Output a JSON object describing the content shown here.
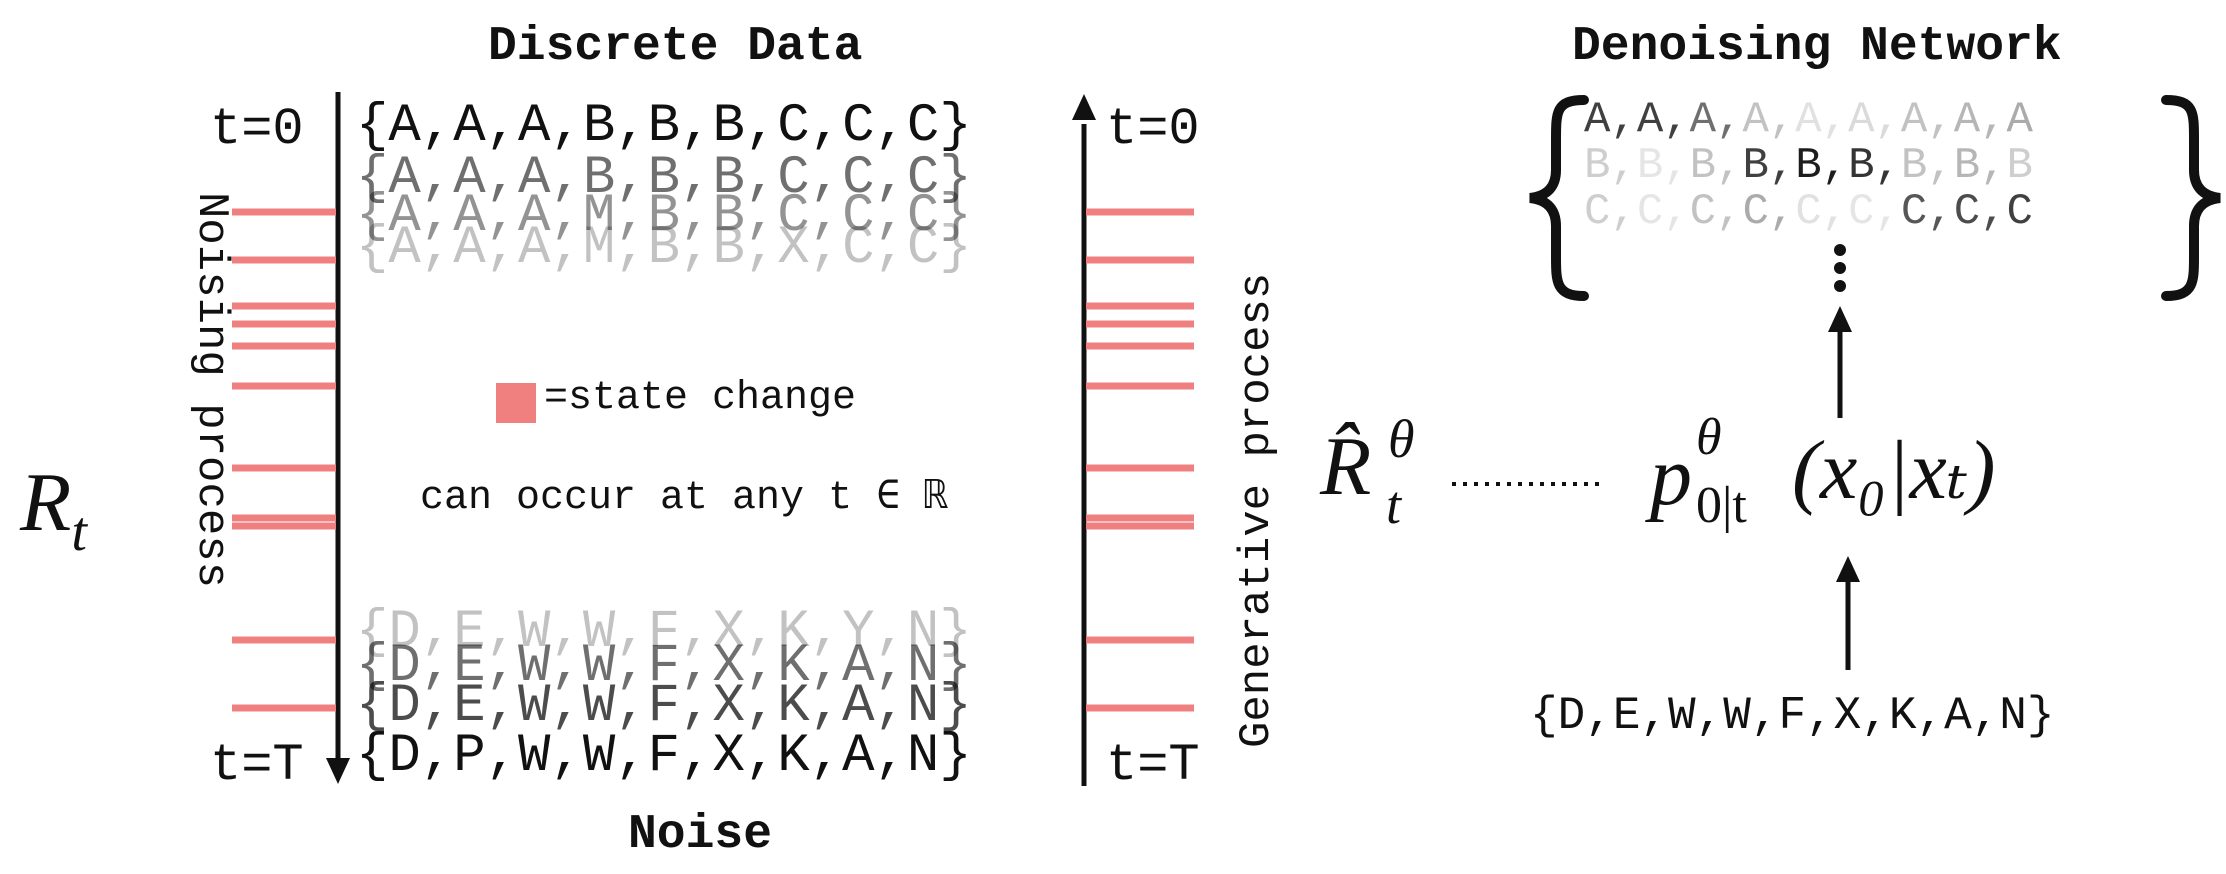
{
  "left": {
    "title": "Discrete Data",
    "bottom_title": "Noise",
    "t0_left": "t=0",
    "t0_right": "t=0",
    "tT_left": "t=T",
    "tT_right": "t=T",
    "noising_label": "Noising process",
    "generative_label": "Generative process",
    "rate_symbol": "R",
    "rate_subscript": "t",
    "legend_text": "=state change",
    "continuous_text": "can occur at any t ∈ ℝ",
    "top_sequences": [
      {
        "text": "{A,A,A,B,B,B,C,C,C}",
        "opacity": 1.0
      },
      {
        "text": "{A,A,A,B,B,B,C,C,C}",
        "opacity": 0.6
      },
      {
        "text": "{A,A,A,M,B,B,C,C,C}",
        "opacity": 0.45
      },
      {
        "text": "{A,A,A,M,B,B,X,C,C}",
        "opacity": 0.25
      }
    ],
    "bottom_sequences": [
      {
        "text": "{D,E,W,W,F,X,K,Y,N}",
        "opacity": 0.25
      },
      {
        "text": "{D,E,W,W,F,X,K,A,N}",
        "opacity": 0.6
      },
      {
        "text": "{D,E,W,W,F,X,K,A,N}",
        "opacity": 0.75
      },
      {
        "text": "{D,P,W,W,F,X,K,A,N}",
        "opacity": 1.0
      }
    ],
    "tick_color": "#f08080"
  },
  "right": {
    "title": "Denoising Network",
    "rate_hat_symbol": "R̂",
    "rate_superscript": "θ",
    "rate_subscript": "t",
    "prob_symbol": "p",
    "prob_superscript": "θ",
    "prob_subscript": "0|t",
    "prob_args": "(x₀|xₜ)",
    "input_sequence": "{D,E,W,W,F,X,K,A,N}",
    "ellipsis": "⋮",
    "output_rows": [
      [
        {
          "c": "A",
          "o": 0.8
        },
        {
          "c": ",",
          "o": 0.8
        },
        {
          "c": "A",
          "o": 0.8
        },
        {
          "c": ",",
          "o": 0.8
        },
        {
          "c": "A",
          "o": 0.6
        },
        {
          "c": ",",
          "o": 0.6
        },
        {
          "c": "A",
          "o": 0.25
        },
        {
          "c": ",",
          "o": 0.25
        },
        {
          "c": "A",
          "o": 0.12
        },
        {
          "c": ",",
          "o": 0.12
        },
        {
          "c": "A",
          "o": 0.15
        },
        {
          "c": ",",
          "o": 0.15
        },
        {
          "c": "A",
          "o": 0.25
        },
        {
          "c": ",",
          "o": 0.25
        },
        {
          "c": "A",
          "o": 0.3
        },
        {
          "c": ",",
          "o": 0.3
        },
        {
          "c": "A",
          "o": 0.35
        }
      ],
      [
        {
          "c": "B",
          "o": 0.2
        },
        {
          "c": ",",
          "o": 0.2
        },
        {
          "c": "B",
          "o": 0.1
        },
        {
          "c": ",",
          "o": 0.1
        },
        {
          "c": "B",
          "o": 0.25
        },
        {
          "c": ",",
          "o": 0.25
        },
        {
          "c": "B",
          "o": 0.8
        },
        {
          "c": ",",
          "o": 0.8
        },
        {
          "c": "B",
          "o": 0.95
        },
        {
          "c": ",",
          "o": 0.95
        },
        {
          "c": "B",
          "o": 0.85
        },
        {
          "c": ",",
          "o": 0.85
        },
        {
          "c": "B",
          "o": 0.25
        },
        {
          "c": ",",
          "o": 0.25
        },
        {
          "c": "B",
          "o": 0.3
        },
        {
          "c": ",",
          "o": 0.3
        },
        {
          "c": "B",
          "o": 0.2
        }
      ],
      [
        {
          "c": "C",
          "o": 0.2
        },
        {
          "c": ",",
          "o": 0.2
        },
        {
          "c": "C",
          "o": 0.1
        },
        {
          "c": ",",
          "o": 0.1
        },
        {
          "c": "C",
          "o": 0.25
        },
        {
          "c": ",",
          "o": 0.25
        },
        {
          "c": "C",
          "o": 0.35
        },
        {
          "c": ",",
          "o": 0.35
        },
        {
          "c": "C",
          "o": 0.12
        },
        {
          "c": ",",
          "o": 0.12
        },
        {
          "c": "C",
          "o": 0.1
        },
        {
          "c": ",",
          "o": 0.1
        },
        {
          "c": "C",
          "o": 0.7
        },
        {
          "c": ",",
          "o": 0.7
        },
        {
          "c": "C",
          "o": 0.75
        },
        {
          "c": ",",
          "o": 0.75
        },
        {
          "c": "C",
          "o": 0.8
        }
      ]
    ]
  }
}
